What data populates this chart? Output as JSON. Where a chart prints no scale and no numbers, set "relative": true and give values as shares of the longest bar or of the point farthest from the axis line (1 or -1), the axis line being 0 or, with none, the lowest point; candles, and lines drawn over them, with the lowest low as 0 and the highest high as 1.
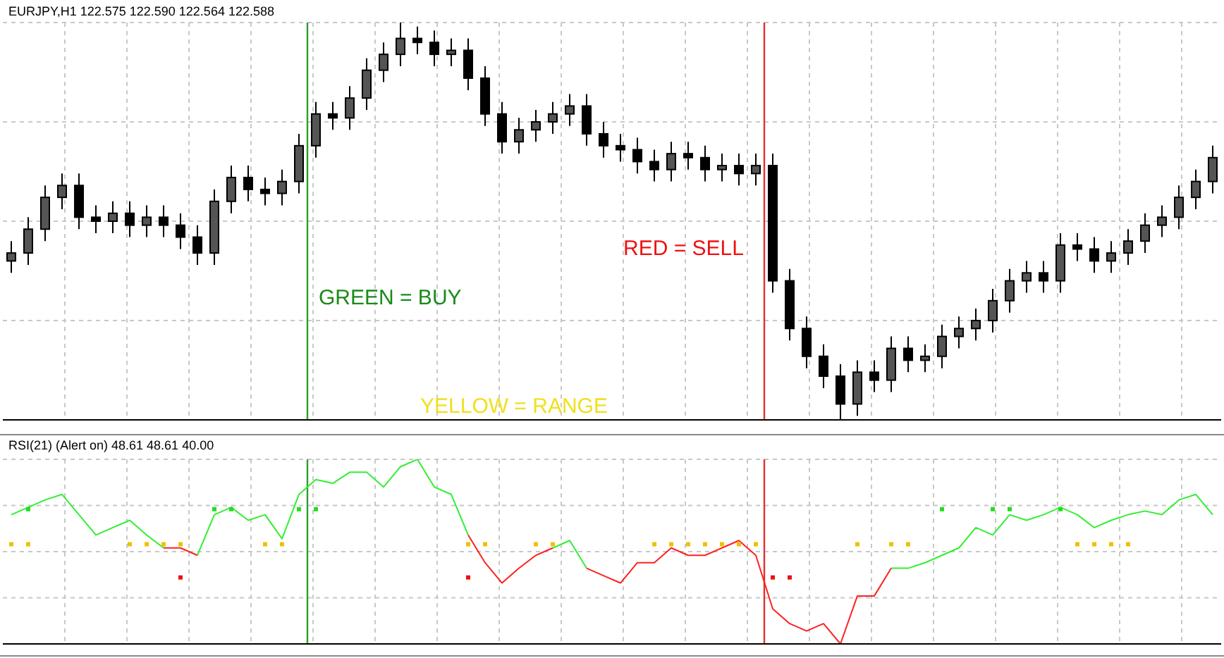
{
  "chart_data": [
    {
      "type": "candlestick",
      "title": "EURJPY,H1 122.575 122.590 122.564 122.588",
      "relative": true,
      "color": "#000000",
      "grid": true,
      "legend": false,
      "categories": [
        null,
        null,
        null,
        null,
        null,
        null,
        null,
        null,
        null,
        null,
        null,
        null,
        null,
        null,
        null,
        null,
        null,
        null,
        null,
        null,
        null,
        null,
        null,
        null,
        null,
        null,
        null,
        null,
        null,
        null,
        null,
        null,
        null,
        null,
        null,
        null,
        null,
        null,
        null,
        null,
        null,
        null,
        null,
        null,
        null,
        null,
        null,
        null,
        null,
        null,
        null,
        null,
        null,
        null,
        null,
        null,
        null,
        null,
        null,
        null,
        null,
        null,
        null,
        null,
        null,
        null,
        null,
        null,
        null,
        null,
        null,
        null
      ],
      "ohlc": [
        [
          0.4,
          0.45,
          0.37,
          0.42
        ],
        [
          0.42,
          0.51,
          0.39,
          0.48
        ],
        [
          0.48,
          0.59,
          0.45,
          0.56
        ],
        [
          0.56,
          0.62,
          0.53,
          0.59
        ],
        [
          0.59,
          0.62,
          0.48,
          0.51
        ],
        [
          0.51,
          0.54,
          0.47,
          0.5
        ],
        [
          0.5,
          0.55,
          0.47,
          0.52
        ],
        [
          0.52,
          0.55,
          0.46,
          0.49
        ],
        [
          0.49,
          0.54,
          0.46,
          0.51
        ],
        [
          0.51,
          0.54,
          0.46,
          0.49
        ],
        [
          0.49,
          0.52,
          0.43,
          0.46
        ],
        [
          0.46,
          0.49,
          0.39,
          0.42
        ],
        [
          0.42,
          0.58,
          0.39,
          0.55
        ],
        [
          0.55,
          0.64,
          0.52,
          0.61
        ],
        [
          0.61,
          0.64,
          0.55,
          0.58
        ],
        [
          0.58,
          0.61,
          0.54,
          0.57
        ],
        [
          0.57,
          0.63,
          0.54,
          0.6
        ],
        [
          0.6,
          0.72,
          0.57,
          0.69
        ],
        [
          0.69,
          0.8,
          0.66,
          0.77
        ],
        [
          0.77,
          0.8,
          0.73,
          0.76
        ],
        [
          0.76,
          0.84,
          0.73,
          0.81
        ],
        [
          0.81,
          0.91,
          0.78,
          0.88
        ],
        [
          0.88,
          0.95,
          0.85,
          0.92
        ],
        [
          0.92,
          1.0,
          0.89,
          0.96
        ],
        [
          0.96,
          0.99,
          0.92,
          0.95
        ],
        [
          0.95,
          0.98,
          0.89,
          0.92
        ],
        [
          0.92,
          0.96,
          0.89,
          0.93
        ],
        [
          0.93,
          0.96,
          0.83,
          0.86
        ],
        [
          0.86,
          0.89,
          0.74,
          0.77
        ],
        [
          0.77,
          0.8,
          0.67,
          0.7
        ],
        [
          0.7,
          0.76,
          0.67,
          0.73
        ],
        [
          0.73,
          0.78,
          0.7,
          0.75
        ],
        [
          0.75,
          0.8,
          0.72,
          0.77
        ],
        [
          0.77,
          0.82,
          0.74,
          0.79
        ],
        [
          0.79,
          0.82,
          0.69,
          0.72
        ],
        [
          0.72,
          0.75,
          0.66,
          0.69
        ],
        [
          0.69,
          0.72,
          0.65,
          0.68
        ],
        [
          0.68,
          0.71,
          0.62,
          0.65
        ],
        [
          0.65,
          0.68,
          0.6,
          0.63
        ],
        [
          0.63,
          0.7,
          0.6,
          0.67
        ],
        [
          0.67,
          0.7,
          0.63,
          0.66
        ],
        [
          0.66,
          0.69,
          0.6,
          0.63
        ],
        [
          0.63,
          0.67,
          0.6,
          0.64
        ],
        [
          0.64,
          0.67,
          0.59,
          0.62
        ],
        [
          0.62,
          0.67,
          0.59,
          0.64
        ],
        [
          0.64,
          0.67,
          0.32,
          0.35
        ],
        [
          0.35,
          0.38,
          0.2,
          0.23
        ],
        [
          0.23,
          0.26,
          0.13,
          0.16
        ],
        [
          0.16,
          0.19,
          0.08,
          0.11
        ],
        [
          0.11,
          0.14,
          0.0,
          0.04
        ],
        [
          0.04,
          0.15,
          0.01,
          0.12
        ],
        [
          0.12,
          0.15,
          0.07,
          0.1
        ],
        [
          0.1,
          0.21,
          0.07,
          0.18
        ],
        [
          0.18,
          0.21,
          0.12,
          0.15
        ],
        [
          0.15,
          0.19,
          0.12,
          0.16
        ],
        [
          0.16,
          0.24,
          0.13,
          0.21
        ],
        [
          0.21,
          0.26,
          0.18,
          0.23
        ],
        [
          0.23,
          0.28,
          0.2,
          0.25
        ],
        [
          0.25,
          0.33,
          0.22,
          0.3
        ],
        [
          0.3,
          0.38,
          0.27,
          0.35
        ],
        [
          0.35,
          0.4,
          0.32,
          0.37
        ],
        [
          0.37,
          0.4,
          0.32,
          0.35
        ],
        [
          0.35,
          0.47,
          0.32,
          0.44
        ],
        [
          0.44,
          0.47,
          0.4,
          0.43
        ],
        [
          0.43,
          0.46,
          0.37,
          0.4
        ],
        [
          0.4,
          0.45,
          0.37,
          0.42
        ],
        [
          0.42,
          0.48,
          0.39,
          0.45
        ],
        [
          0.45,
          0.52,
          0.42,
          0.49
        ],
        [
          0.49,
          0.54,
          0.46,
          0.51
        ],
        [
          0.51,
          0.59,
          0.48,
          0.56
        ],
        [
          0.56,
          0.63,
          0.53,
          0.6
        ],
        [
          0.6,
          0.69,
          0.57,
          0.66
        ]
      ],
      "annotations": [
        "GREEN = BUY",
        "RED = SELL",
        "YELLOW = RANGE"
      ]
    },
    {
      "type": "line",
      "title": "RSI(21) (Alert on) 48.61 48.61 40.00",
      "relative": true,
      "grid": true,
      "legend": false,
      "line_style": "solid",
      "marker": "none",
      "categories": [
        null,
        null,
        null,
        null,
        null,
        null,
        null,
        null,
        null,
        null,
        null,
        null,
        null,
        null,
        null,
        null,
        null,
        null,
        null,
        null,
        null,
        null,
        null,
        null,
        null,
        null,
        null,
        null,
        null,
        null,
        null,
        null,
        null,
        null,
        null,
        null,
        null,
        null,
        null,
        null,
        null,
        null,
        null,
        null,
        null,
        null,
        null,
        null,
        null,
        null,
        null,
        null,
        null,
        null,
        null,
        null,
        null,
        null,
        null,
        null,
        null,
        null,
        null,
        null,
        null,
        null,
        null,
        null,
        null,
        null,
        null,
        null
      ],
      "series": [
        {
          "type": "line",
          "color": "#33ee33",
          "values": [
            0.7,
            0.74,
            0.78,
            0.81,
            0.7,
            0.59,
            0.63,
            0.67,
            0.59,
            0.52,
            null,
            0.48,
            0.7,
            0.74,
            0.67,
            0.7,
            0.57,
            0.81,
            0.89,
            0.87,
            0.93,
            0.93,
            0.85,
            0.96,
            1.0,
            0.85,
            0.81,
            0.59,
            null,
            null,
            null,
            null,
            0.52,
            0.56,
            0.41,
            null,
            null,
            null,
            null,
            null,
            null,
            null,
            null,
            null,
            null,
            null,
            null,
            null,
            null,
            null,
            null,
            null,
            0.41,
            0.41,
            0.44,
            0.48,
            0.52,
            0.63,
            0.59,
            0.7,
            0.67,
            0.7,
            0.74,
            0.7,
            0.63,
            0.67,
            0.7,
            0.72,
            0.7,
            0.78,
            0.81,
            0.7
          ]
        },
        {
          "type": "line",
          "color": "#ff2020",
          "values": [
            null,
            null,
            null,
            null,
            null,
            null,
            null,
            null,
            null,
            0.52,
            0.52,
            0.48,
            null,
            null,
            null,
            null,
            null,
            null,
            null,
            null,
            null,
            null,
            null,
            null,
            null,
            null,
            null,
            0.59,
            0.44,
            0.33,
            0.41,
            0.48,
            0.52,
            null,
            0.41,
            0.37,
            0.33,
            0.44,
            0.44,
            0.52,
            0.48,
            0.48,
            0.52,
            0.56,
            0.48,
            0.19,
            0.11,
            0.07,
            0.11,
            0.0,
            0.26,
            0.26,
            0.41,
            null,
            null,
            null,
            null,
            null,
            null,
            null,
            null,
            null,
            null,
            null,
            null,
            null,
            null,
            null,
            null,
            null,
            null,
            null
          ]
        },
        {
          "type": "scatter",
          "marker": "square",
          "color": "#f0c000",
          "values": [
            0.54,
            0.54,
            null,
            null,
            null,
            null,
            null,
            0.54,
            0.54,
            0.54,
            0.54,
            null,
            null,
            null,
            null,
            0.54,
            0.54,
            null,
            null,
            null,
            null,
            null,
            null,
            null,
            null,
            null,
            null,
            0.54,
            0.54,
            null,
            null,
            0.54,
            0.54,
            null,
            null,
            null,
            null,
            null,
            0.54,
            0.54,
            0.54,
            0.54,
            0.54,
            0.54,
            0.54,
            null,
            null,
            null,
            null,
            null,
            0.54,
            null,
            0.54,
            0.54,
            null,
            null,
            null,
            null,
            null,
            null,
            null,
            null,
            null,
            0.54,
            0.54,
            0.54,
            0.54,
            null,
            null,
            null,
            null,
            null
          ]
        },
        {
          "type": "scatter",
          "marker": "square",
          "color": "#22dd22",
          "values": [
            null,
            0.73,
            null,
            null,
            null,
            null,
            null,
            null,
            null,
            null,
            null,
            null,
            0.73,
            0.73,
            null,
            null,
            null,
            0.73,
            0.73,
            null,
            null,
            null,
            null,
            null,
            null,
            null,
            null,
            null,
            null,
            null,
            null,
            null,
            null,
            null,
            null,
            null,
            null,
            null,
            null,
            null,
            null,
            null,
            null,
            null,
            null,
            null,
            null,
            null,
            null,
            null,
            null,
            null,
            null,
            null,
            null,
            0.73,
            null,
            null,
            0.73,
            0.73,
            null,
            null,
            0.73,
            null,
            null,
            null,
            null,
            null,
            null,
            null,
            null,
            null
          ]
        },
        {
          "type": "scatter",
          "marker": "square",
          "color": "#ee1111",
          "values": [
            null,
            null,
            null,
            null,
            null,
            null,
            null,
            null,
            null,
            null,
            0.36,
            null,
            null,
            null,
            null,
            null,
            null,
            null,
            null,
            null,
            null,
            null,
            null,
            null,
            null,
            null,
            null,
            0.36,
            null,
            null,
            null,
            null,
            null,
            null,
            null,
            null,
            null,
            null,
            null,
            null,
            null,
            null,
            null,
            null,
            null,
            0.36,
            0.36,
            null,
            null,
            null,
            null,
            null,
            null,
            null,
            null,
            null,
            null,
            null,
            null,
            null,
            null,
            null,
            null,
            null,
            null,
            null,
            null,
            null,
            null,
            null,
            null,
            null
          ]
        }
      ]
    }
  ]
}
